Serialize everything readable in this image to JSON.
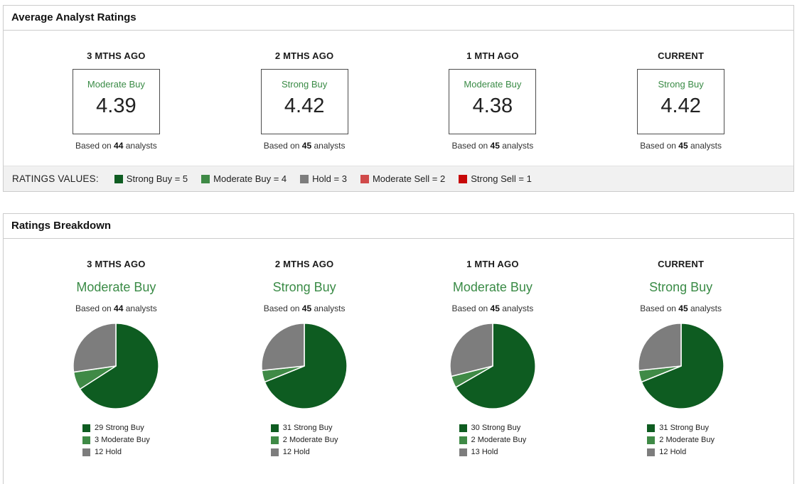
{
  "colors": {
    "strong_buy": "#0e5c21",
    "moderate_buy": "#3f8a46",
    "hold": "#7d7d7d",
    "moderate_sell": "#d04a4a",
    "strong_sell": "#c70808",
    "consensus_text_green": "#3a8b46"
  },
  "average_ratings_panel": {
    "title": "Average Analyst Ratings",
    "columns": [
      {
        "period": "3 MTHS AGO",
        "consensus": "Moderate Buy",
        "value": "4.39",
        "based_prefix": "Based on",
        "analyst_count": "44",
        "based_suffix": "analysts"
      },
      {
        "period": "2 MTHS AGO",
        "consensus": "Strong Buy",
        "value": "4.42",
        "based_prefix": "Based on",
        "analyst_count": "45",
        "based_suffix": "analysts"
      },
      {
        "period": "1 MTH AGO",
        "consensus": "Moderate Buy",
        "value": "4.38",
        "based_prefix": "Based on",
        "analyst_count": "45",
        "based_suffix": "analysts"
      },
      {
        "period": "CURRENT",
        "consensus": "Strong Buy",
        "value": "4.42",
        "based_prefix": "Based on",
        "analyst_count": "45",
        "based_suffix": "analysts"
      }
    ],
    "legend_label": "RATINGS VALUES:",
    "legend": [
      {
        "label": "Strong Buy = 5",
        "color": "#0e5c21"
      },
      {
        "label": "Moderate Buy = 4",
        "color": "#3f8a46"
      },
      {
        "label": "Hold = 3",
        "color": "#7d7d7d"
      },
      {
        "label": "Moderate Sell = 2",
        "color": "#d04a4a"
      },
      {
        "label": "Strong Sell = 1",
        "color": "#c70808"
      }
    ]
  },
  "breakdown_panel": {
    "title": "Ratings Breakdown",
    "columns": [
      {
        "period": "3 MTHS AGO",
        "consensus": "Moderate Buy",
        "based_prefix": "Based on",
        "analyst_count": "44",
        "based_suffix": "analysts"
      },
      {
        "period": "2 MTHS AGO",
        "consensus": "Strong Buy",
        "based_prefix": "Based on",
        "analyst_count": "45",
        "based_suffix": "analysts"
      },
      {
        "period": "1 MTH AGO",
        "consensus": "Moderate Buy",
        "based_prefix": "Based on",
        "analyst_count": "45",
        "based_suffix": "analysts"
      },
      {
        "period": "CURRENT",
        "consensus": "Strong Buy",
        "based_prefix": "Based on",
        "analyst_count": "45",
        "based_suffix": "analysts"
      }
    ]
  },
  "chart_data": [
    {
      "type": "pie",
      "title": "3 MTHS AGO",
      "subtitle": "Moderate Buy — Based on 44 analysts",
      "categories": [
        "Strong Buy",
        "Moderate Buy",
        "Hold"
      ],
      "values": [
        29,
        3,
        12
      ],
      "colors": [
        "#0e5c21",
        "#3f8a46",
        "#7d7d7d"
      ],
      "legend_labels": [
        "29 Strong Buy",
        "3 Moderate Buy",
        "12 Hold"
      ],
      "legend_position": "bottom"
    },
    {
      "type": "pie",
      "title": "2 MTHS AGO",
      "subtitle": "Strong Buy — Based on 45 analysts",
      "categories": [
        "Strong Buy",
        "Moderate Buy",
        "Hold"
      ],
      "values": [
        31,
        2,
        12
      ],
      "colors": [
        "#0e5c21",
        "#3f8a46",
        "#7d7d7d"
      ],
      "legend_labels": [
        "31 Strong Buy",
        "2 Moderate Buy",
        "12 Hold"
      ],
      "legend_position": "bottom"
    },
    {
      "type": "pie",
      "title": "1 MTH AGO",
      "subtitle": "Moderate Buy — Based on 45 analysts",
      "categories": [
        "Strong Buy",
        "Moderate Buy",
        "Hold"
      ],
      "values": [
        30,
        2,
        13
      ],
      "colors": [
        "#0e5c21",
        "#3f8a46",
        "#7d7d7d"
      ],
      "legend_labels": [
        "30 Strong Buy",
        "2 Moderate Buy",
        "13 Hold"
      ],
      "legend_position": "bottom"
    },
    {
      "type": "pie",
      "title": "CURRENT",
      "subtitle": "Strong Buy — Based on 45 analysts",
      "categories": [
        "Strong Buy",
        "Moderate Buy",
        "Hold"
      ],
      "values": [
        31,
        2,
        12
      ],
      "colors": [
        "#0e5c21",
        "#3f8a46",
        "#7d7d7d"
      ],
      "legend_labels": [
        "31 Strong Buy",
        "2 Moderate Buy",
        "12 Hold"
      ],
      "legend_position": "bottom"
    }
  ]
}
